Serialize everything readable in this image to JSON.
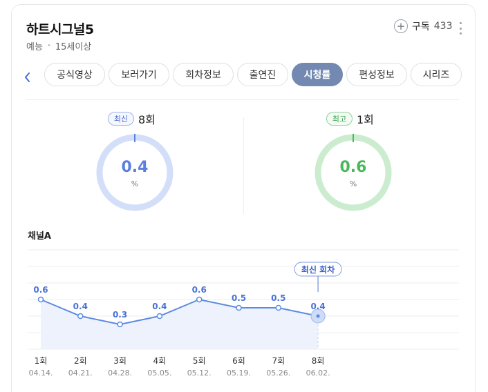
{
  "program": {
    "title": "하트시그널5",
    "genre": "예능",
    "rating": "15세이상"
  },
  "subscribe": {
    "label": "구독",
    "count": "433"
  },
  "tabs": [
    "공식영상",
    "보러가기",
    "회차정보",
    "출연진",
    "시청률",
    "편성정보",
    "시리즈"
  ],
  "active_tab": "시청률",
  "latest": {
    "badge": "최신",
    "episode": "8회",
    "value": "0.4",
    "unit": "%",
    "color": "#5b7fe0",
    "ring_color": "#d3def8"
  },
  "best": {
    "badge": "최고",
    "episode": "1회",
    "value": "0.6",
    "unit": "%",
    "color": "#4cb85c",
    "ring_color": "#cbeccf"
  },
  "channel_label": "채널A",
  "chart_data": {
    "type": "area",
    "categories": [
      "1회",
      "2회",
      "3회",
      "4회",
      "5회",
      "6회",
      "7회",
      "8회"
    ],
    "dates": [
      "04.14.",
      "04.21.",
      "04.28.",
      "05.05.",
      "05.12.",
      "05.19.",
      "05.26.",
      "06.02."
    ],
    "values": [
      0.6,
      0.4,
      0.3,
      0.4,
      0.6,
      0.5,
      0.5,
      0.4
    ],
    "ylim": [
      0,
      1.2
    ],
    "grid": true,
    "line_color": "#5b8ae0",
    "fill_color": "#edf2fd",
    "annotation": {
      "text": "최신 회차",
      "index": 7
    }
  }
}
